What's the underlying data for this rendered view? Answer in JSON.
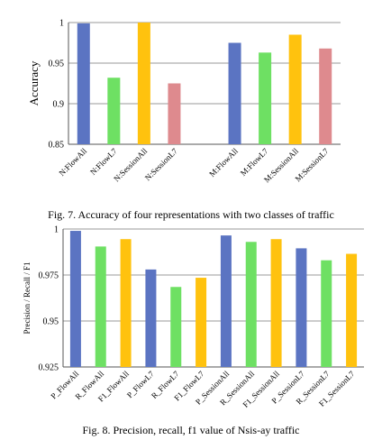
{
  "colors": {
    "blue": "#5b74c2",
    "green": "#6ee063",
    "yellow": "#ffc20e",
    "pink": "#de8a8e"
  },
  "chart_data": [
    {
      "type": "bar",
      "ylabel": "Accuracy",
      "caption": "Fig. 7. Accuracy of four representations with two classes of traffic",
      "ylim": [
        0.85,
        1
      ],
      "yticks": [
        "0.85",
        "0.9",
        "0.95",
        "1"
      ],
      "grid": true,
      "categories": [
        "N:FlowAll",
        "N:FlowL7",
        "N:SessionAll",
        "N:SessionL7",
        "",
        "M:FlowAll",
        "M:FlowL7",
        "M:SessionAll",
        "M:SessionL7"
      ],
      "values": [
        0.999,
        0.932,
        1.0,
        0.925,
        null,
        0.975,
        0.963,
        0.985,
        0.968
      ],
      "bar_colors": [
        "blue",
        "green",
        "yellow",
        "pink",
        null,
        "blue",
        "green",
        "yellow",
        "pink"
      ]
    },
    {
      "type": "bar",
      "ylabel": "Precision / Recall / F1",
      "caption": "Fig. 8. Precision, recall, f1 value of Nsis-ay traffic",
      "ylim": [
        0.925,
        1
      ],
      "yticks": [
        "0.925",
        "0.95",
        "0.975",
        "1"
      ],
      "grid": true,
      "categories": [
        "P_FlowAll",
        "R_FlowAll",
        "F1_FlowAll",
        "P_FlowL7",
        "R_FlowL7",
        "F1_FlowL7",
        "P_SessionAll",
        "R_SessionAll",
        "F1_SessionAll",
        "P_SessionL7",
        "R_SessionL7",
        "F1_SessionL7"
      ],
      "values": [
        0.999,
        0.9905,
        0.9945,
        0.978,
        0.9685,
        0.9735,
        0.9965,
        0.993,
        0.9945,
        0.9895,
        0.983,
        0.9865
      ],
      "bar_colors": [
        "blue",
        "green",
        "yellow",
        "blue",
        "green",
        "yellow",
        "blue",
        "green",
        "yellow",
        "blue",
        "green",
        "yellow"
      ]
    }
  ]
}
